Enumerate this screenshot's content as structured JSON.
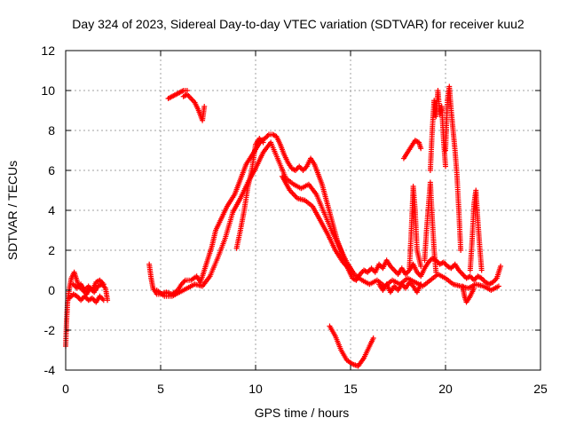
{
  "chart_data": {
    "type": "scatter",
    "title": "Day 324 of 2023, Sidereal Day-to-day VTEC variation (SDTVAR) for receiver kuu2",
    "xlabel": "GPS time / hours",
    "ylabel": "SDTVAR / TECUs",
    "xlim": [
      0,
      25
    ],
    "ylim": [
      -4,
      12
    ],
    "xticks": [
      0,
      5,
      10,
      15,
      20,
      25
    ],
    "yticks": [
      -4,
      -2,
      0,
      2,
      4,
      6,
      8,
      10,
      12
    ],
    "grid": true,
    "marker": "+",
    "color": "#ff0000",
    "series": [
      {
        "name": "SDTVAR",
        "segments": [
          [
            [
              0.0,
              -2.8
            ],
            [
              0.05,
              -1.5
            ],
            [
              0.1,
              -0.6
            ],
            [
              0.2,
              0.1
            ],
            [
              0.3,
              0.6
            ],
            [
              0.45,
              0.9
            ],
            [
              0.55,
              0.6
            ],
            [
              0.7,
              0.2
            ],
            [
              0.9,
              0.0
            ],
            [
              1.1,
              -0.2
            ],
            [
              1.3,
              0.1
            ],
            [
              1.5,
              -0.1
            ],
            [
              1.7,
              0.2
            ],
            [
              1.9,
              0.3
            ],
            [
              2.1,
              0.1
            ],
            [
              2.2,
              -0.5
            ]
          ],
          [
            [
              0.2,
              -0.4
            ],
            [
              0.4,
              -0.2
            ],
            [
              0.6,
              -0.3
            ],
            [
              0.8,
              -0.5
            ],
            [
              1.0,
              -0.3
            ],
            [
              1.2,
              -0.5
            ],
            [
              1.4,
              -0.4
            ],
            [
              1.6,
              -0.6
            ],
            [
              1.8,
              -0.3
            ],
            [
              2.0,
              -0.5
            ]
          ],
          [
            [
              0.4,
              0.3
            ],
            [
              0.6,
              0.1
            ],
            [
              0.8,
              0.3
            ],
            [
              1.0,
              0.0
            ],
            [
              1.2,
              0.2
            ],
            [
              1.4,
              0.0
            ],
            [
              1.6,
              0.4
            ],
            [
              1.8,
              0.5
            ],
            [
              2.0,
              0.3
            ]
          ],
          [
            [
              4.4,
              1.3
            ],
            [
              4.5,
              0.6
            ],
            [
              4.6,
              0.1
            ],
            [
              4.8,
              -0.2
            ],
            [
              5.0,
              -0.2
            ],
            [
              5.3,
              -0.1
            ],
            [
              5.6,
              -0.2
            ],
            [
              5.9,
              0.0
            ],
            [
              6.1,
              0.3
            ],
            [
              6.3,
              0.5
            ],
            [
              6.6,
              0.5
            ],
            [
              6.9,
              0.7
            ],
            [
              7.1,
              0.4
            ],
            [
              7.3,
              1.0
            ],
            [
              7.5,
              1.6
            ],
            [
              7.7,
              2.2
            ],
            [
              7.9,
              3.0
            ],
            [
              8.1,
              3.4
            ],
            [
              8.3,
              3.8
            ],
            [
              8.5,
              4.2
            ],
            [
              8.7,
              4.5
            ],
            [
              8.9,
              4.8
            ],
            [
              9.1,
              5.3
            ],
            [
              9.3,
              5.8
            ],
            [
              9.5,
              6.3
            ],
            [
              9.7,
              6.6
            ],
            [
              9.9,
              6.9
            ],
            [
              10.1,
              7.2
            ],
            [
              10.3,
              7.5
            ],
            [
              10.5,
              7.6
            ],
            [
              10.7,
              7.8
            ],
            [
              10.9,
              7.8
            ],
            [
              11.1,
              7.7
            ],
            [
              11.3,
              7.3
            ],
            [
              11.5,
              6.8
            ],
            [
              11.7,
              6.4
            ],
            [
              11.9,
              6.1
            ],
            [
              12.1,
              6.0
            ],
            [
              12.3,
              6.2
            ],
            [
              12.5,
              6.0
            ],
            [
              12.7,
              6.2
            ],
            [
              12.9,
              6.6
            ],
            [
              13.1,
              6.3
            ],
            [
              13.3,
              5.8
            ],
            [
              13.5,
              5.3
            ],
            [
              13.7,
              4.6
            ],
            [
              13.9,
              3.9
            ],
            [
              14.1,
              3.2
            ],
            [
              14.3,
              2.5
            ],
            [
              14.5,
              2.0
            ],
            [
              14.7,
              1.4
            ],
            [
              14.9,
              1.0
            ],
            [
              15.1,
              0.6
            ],
            [
              15.3,
              0.5
            ],
            [
              15.5,
              0.8
            ],
            [
              15.7,
              1.0
            ],
            [
              15.9,
              0.9
            ],
            [
              16.1,
              1.1
            ],
            [
              16.3,
              0.9
            ],
            [
              16.5,
              1.3
            ],
            [
              16.7,
              1.1
            ],
            [
              16.9,
              1.5
            ],
            [
              17.1,
              1.2
            ],
            [
              17.3,
              1.0
            ],
            [
              17.5,
              0.8
            ],
            [
              17.7,
              1.1
            ],
            [
              17.9,
              0.8
            ],
            [
              18.1,
              1.0
            ],
            [
              18.3,
              1.3
            ],
            [
              18.5,
              0.9
            ],
            [
              18.7,
              0.7
            ],
            [
              18.9,
              1.1
            ],
            [
              19.1,
              1.4
            ],
            [
              19.3,
              1.6
            ],
            [
              19.5,
              1.5
            ],
            [
              19.7,
              1.3
            ],
            [
              19.9,
              1.4
            ],
            [
              20.1,
              1.2
            ],
            [
              20.3,
              1.1
            ],
            [
              20.5,
              1.3
            ],
            [
              20.7,
              1.0
            ],
            [
              20.9,
              0.8
            ],
            [
              21.1,
              0.6
            ],
            [
              21.3,
              0.7
            ],
            [
              21.5,
              0.5
            ],
            [
              21.7,
              0.7
            ],
            [
              21.9,
              0.6
            ],
            [
              22.1,
              0.4
            ],
            [
              22.3,
              0.3
            ],
            [
              22.5,
              0.4
            ],
            [
              22.7,
              0.6
            ],
            [
              22.9,
              1.2
            ]
          ],
          [
            [
              4.8,
              0.0
            ],
            [
              5.2,
              -0.3
            ],
            [
              5.6,
              -0.3
            ],
            [
              6.0,
              -0.1
            ],
            [
              6.4,
              0.1
            ],
            [
              6.8,
              0.3
            ],
            [
              7.2,
              0.2
            ],
            [
              7.6,
              0.7
            ],
            [
              8.0,
              1.6
            ],
            [
              8.4,
              2.6
            ],
            [
              8.8,
              3.9
            ],
            [
              9.2,
              4.6
            ],
            [
              9.6,
              5.4
            ],
            [
              10.0,
              6.1
            ],
            [
              10.4,
              6.9
            ],
            [
              10.8,
              7.4
            ],
            [
              11.2,
              6.5
            ],
            [
              11.6,
              5.6
            ],
            [
              12.0,
              5.3
            ],
            [
              12.4,
              5.1
            ],
            [
              12.8,
              5.3
            ],
            [
              13.2,
              4.8
            ],
            [
              13.6,
              3.9
            ],
            [
              14.0,
              3.0
            ],
            [
              14.4,
              2.2
            ],
            [
              14.8,
              1.4
            ],
            [
              15.2,
              0.8
            ],
            [
              15.6,
              0.5
            ],
            [
              16.0,
              0.3
            ],
            [
              16.4,
              0.5
            ],
            [
              16.8,
              0.2
            ],
            [
              17.2,
              0.5
            ],
            [
              17.6,
              0.3
            ],
            [
              18.0,
              0.6
            ],
            [
              18.4,
              0.4
            ],
            [
              18.8,
              0.2
            ],
            [
              19.2,
              0.5
            ],
            [
              19.6,
              0.8
            ],
            [
              20.0,
              0.6
            ],
            [
              20.4,
              0.3
            ],
            [
              20.8,
              0.2
            ],
            [
              21.2,
              0.1
            ],
            [
              21.6,
              0.3
            ],
            [
              22.0,
              0.2
            ],
            [
              22.4,
              0.0
            ],
            [
              22.8,
              0.2
            ]
          ],
          [
            [
              9.0,
              2.1
            ],
            [
              9.2,
              3.0
            ],
            [
              9.4,
              4.0
            ],
            [
              9.6,
              5.2
            ],
            [
              9.8,
              6.0
            ],
            [
              10.0,
              7.3
            ],
            [
              10.2,
              7.6
            ],
            [
              10.4,
              7.4
            ]
          ],
          [
            [
              11.4,
              5.7
            ],
            [
              11.8,
              5.0
            ],
            [
              12.2,
              4.6
            ],
            [
              12.6,
              4.5
            ],
            [
              13.0,
              4.2
            ],
            [
              13.4,
              3.5
            ],
            [
              13.8,
              2.8
            ],
            [
              14.2,
              2.0
            ],
            [
              14.6,
              1.4
            ],
            [
              15.0,
              1.0
            ]
          ],
          [
            [
              6.2,
              9.7
            ],
            [
              6.4,
              9.8
            ],
            [
              6.6,
              9.6
            ],
            [
              6.8,
              9.4
            ],
            [
              7.0,
              9.0
            ],
            [
              7.2,
              8.5
            ],
            [
              7.3,
              9.2
            ]
          ],
          [
            [
              5.4,
              9.6
            ],
            [
              5.6,
              9.7
            ],
            [
              5.8,
              9.8
            ],
            [
              6.0,
              9.9
            ],
            [
              6.2,
              10.0
            ],
            [
              6.4,
              10.0
            ]
          ],
          [
            [
              13.9,
              -1.8
            ],
            [
              14.2,
              -2.3
            ],
            [
              14.5,
              -3.0
            ],
            [
              14.8,
              -3.5
            ],
            [
              15.1,
              -3.7
            ],
            [
              15.4,
              -3.8
            ],
            [
              15.7,
              -3.4
            ],
            [
              16.0,
              -2.8
            ],
            [
              16.2,
              -2.4
            ]
          ],
          [
            [
              17.8,
              6.6
            ],
            [
              18.0,
              6.9
            ],
            [
              18.2,
              7.2
            ],
            [
              18.4,
              7.5
            ],
            [
              18.6,
              7.4
            ],
            [
              18.7,
              7.1
            ]
          ],
          [
            [
              18.1,
              1.1
            ],
            [
              18.2,
              3.0
            ],
            [
              18.3,
              5.2
            ],
            [
              18.4,
              4.0
            ],
            [
              18.5,
              2.0
            ],
            [
              18.7,
              1.2
            ]
          ],
          [
            [
              18.9,
              1.5
            ],
            [
              19.0,
              3.0
            ],
            [
              19.2,
              5.4
            ],
            [
              19.3,
              3.6
            ],
            [
              19.4,
              2.0
            ],
            [
              19.5,
              0.9
            ]
          ],
          [
            [
              19.2,
              6.0
            ],
            [
              19.3,
              8.0
            ],
            [
              19.4,
              9.5
            ],
            [
              19.5,
              8.7
            ],
            [
              19.6,
              10.0
            ],
            [
              19.7,
              8.8
            ],
            [
              19.8,
              9.2
            ],
            [
              19.9,
              7.5
            ],
            [
              20.0,
              6.2
            ]
          ],
          [
            [
              20.0,
              7.0
            ],
            [
              20.1,
              9.5
            ],
            [
              20.2,
              10.2
            ],
            [
              20.3,
              9.0
            ],
            [
              20.4,
              8.0
            ],
            [
              20.5,
              7.0
            ],
            [
              20.6,
              5.8
            ],
            [
              20.7,
              4.0
            ],
            [
              20.8,
              2.0
            ]
          ],
          [
            [
              21.3,
              1.0
            ],
            [
              21.4,
              2.5
            ],
            [
              21.5,
              4.3
            ],
            [
              21.6,
              5.0
            ],
            [
              21.7,
              3.5
            ],
            [
              21.8,
              2.2
            ],
            [
              21.9,
              1.0
            ]
          ],
          [
            [
              20.9,
              0.2
            ],
            [
              21.0,
              -0.3
            ],
            [
              21.1,
              -0.6
            ],
            [
              21.3,
              -0.3
            ],
            [
              21.5,
              0.1
            ]
          ],
          [
            [
              16.5,
              0.3
            ],
            [
              16.7,
              0.0
            ],
            [
              16.9,
              0.3
            ],
            [
              17.1,
              -0.1
            ],
            [
              17.3,
              0.2
            ],
            [
              17.5,
              0.0
            ],
            [
              17.7,
              0.3
            ],
            [
              17.9,
              0.1
            ],
            [
              18.1,
              0.4
            ],
            [
              18.3,
              0.2
            ],
            [
              18.5,
              -0.1
            ],
            [
              18.7,
              0.3
            ]
          ]
        ]
      }
    ]
  }
}
